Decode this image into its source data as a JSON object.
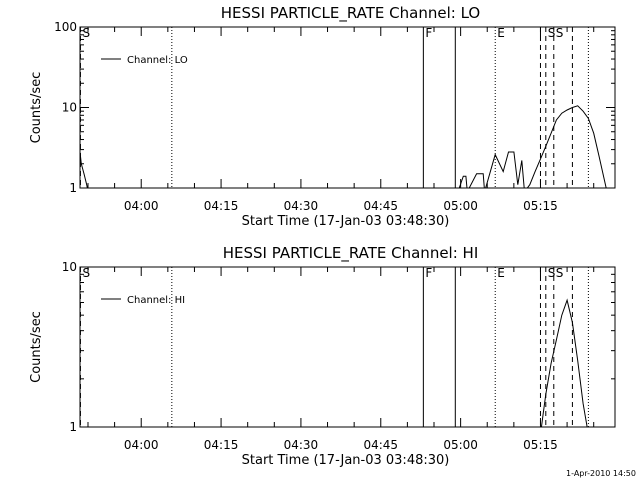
{
  "footer": {
    "stamp": "1-Apr-2010 14:50"
  },
  "chart_data": [
    {
      "type": "line",
      "title": "HESSI PARTICLE_RATE Channel: LO",
      "xlabel": "Start Time (17-Jan-03 03:48:30)",
      "ylabel": "Counts/sec",
      "yscale": "log",
      "ylim": [
        1,
        100
      ],
      "xlim": [
        "03:48:30",
        "05:29:00"
      ],
      "x_ticks": [
        "04:00",
        "04:15",
        "04:30",
        "04:45",
        "05:00",
        "05:15"
      ],
      "y_ticks": [
        "1",
        "10",
        "100"
      ],
      "legend": {
        "entries": [
          "Channel: LO"
        ],
        "placement": "top-left"
      },
      "series": [
        {
          "name": "Channel: LO",
          "x": [
            "03:48:30",
            "03:48:45",
            "03:49:15",
            "03:49:45",
            "03:50:00",
            "04:59:30",
            "05:00:30",
            "05:01:00",
            "05:01:15",
            "05:03:00",
            "05:04:15",
            "05:04:30",
            "05:06:30",
            "05:08:00",
            "05:09:00",
            "05:10:00",
            "05:10:45",
            "05:11:30",
            "05:12:00",
            "05:13:00",
            "05:14:00",
            "05:15:00",
            "05:16:00",
            "05:17:00",
            "05:18:00",
            "05:19:00",
            "05:20:00",
            "05:21:00",
            "05:22:00",
            "05:23:00",
            "05:24:00",
            "05:25:00",
            "05:26:00",
            "05:27:30"
          ],
          "values": [
            2.8,
            2.0,
            1.5,
            1.1,
            0.9,
            0.9,
            1.4,
            1.4,
            0.9,
            1.5,
            1.5,
            0.9,
            2.6,
            1.6,
            2.8,
            2.8,
            1.1,
            2.2,
            0.9,
            1.1,
            1.6,
            2.3,
            3.3,
            4.8,
            7.0,
            8.5,
            9.3,
            10.0,
            10.5,
            9.0,
            7.3,
            4.8,
            2.5,
            0.9
          ]
        }
      ],
      "markers": [
        {
          "label": "S",
          "time": "03:48:35",
          "style": "dashed"
        },
        {
          "label": "",
          "time": "04:05:45",
          "style": "dotted"
        },
        {
          "label": "F",
          "time": "04:53:00",
          "style": "solid"
        },
        {
          "label": "",
          "time": "04:59:00",
          "style": "solid"
        },
        {
          "label": "E",
          "time": "05:06:30",
          "style": "dotted"
        },
        {
          "label": "",
          "time": "05:15:00",
          "style": "dashed"
        },
        {
          "label": "S",
          "time": "05:16:00",
          "style": "dashed"
        },
        {
          "label": "S",
          "time": "05:17:30",
          "style": "dashed"
        },
        {
          "label": "",
          "time": "05:21:00",
          "style": "dashed"
        },
        {
          "label": "",
          "time": "05:24:00",
          "style": "dotted"
        }
      ]
    },
    {
      "type": "line",
      "title": "HESSI PARTICLE_RATE Channel: HI",
      "xlabel": "Start Time (17-Jan-03 03:48:30)",
      "ylabel": "Counts/sec",
      "yscale": "log",
      "ylim": [
        1,
        10
      ],
      "xlim": [
        "03:48:30",
        "05:29:00"
      ],
      "x_ticks": [
        "04:00",
        "04:15",
        "04:30",
        "04:45",
        "05:00",
        "05:15"
      ],
      "y_ticks": [
        "1",
        "10"
      ],
      "legend": {
        "entries": [
          "Channel: HI"
        ],
        "placement": "top-left"
      },
      "series": [
        {
          "name": "Channel: HI",
          "x": [
            "05:15:00",
            "05:15:30",
            "05:16:00",
            "05:17:00",
            "05:18:00",
            "05:19:00",
            "05:20:00",
            "05:21:00",
            "05:22:00",
            "05:23:00",
            "05:24:00"
          ],
          "values": [
            0.9,
            1.2,
            1.6,
            2.5,
            3.5,
            5.0,
            6.2,
            4.5,
            2.6,
            1.4,
            0.9
          ]
        }
      ],
      "markers": [
        {
          "label": "S",
          "time": "03:48:35",
          "style": "dashed"
        },
        {
          "label": "",
          "time": "04:05:45",
          "style": "dotted"
        },
        {
          "label": "F",
          "time": "04:53:00",
          "style": "solid"
        },
        {
          "label": "",
          "time": "04:59:00",
          "style": "solid"
        },
        {
          "label": "E",
          "time": "05:06:30",
          "style": "dotted"
        },
        {
          "label": "",
          "time": "05:15:00",
          "style": "dashed"
        },
        {
          "label": "S",
          "time": "05:16:00",
          "style": "dashed"
        },
        {
          "label": "S",
          "time": "05:17:30",
          "style": "dashed"
        },
        {
          "label": "",
          "time": "05:21:00",
          "style": "dashed"
        },
        {
          "label": "",
          "time": "05:24:00",
          "style": "dotted"
        }
      ]
    }
  ]
}
